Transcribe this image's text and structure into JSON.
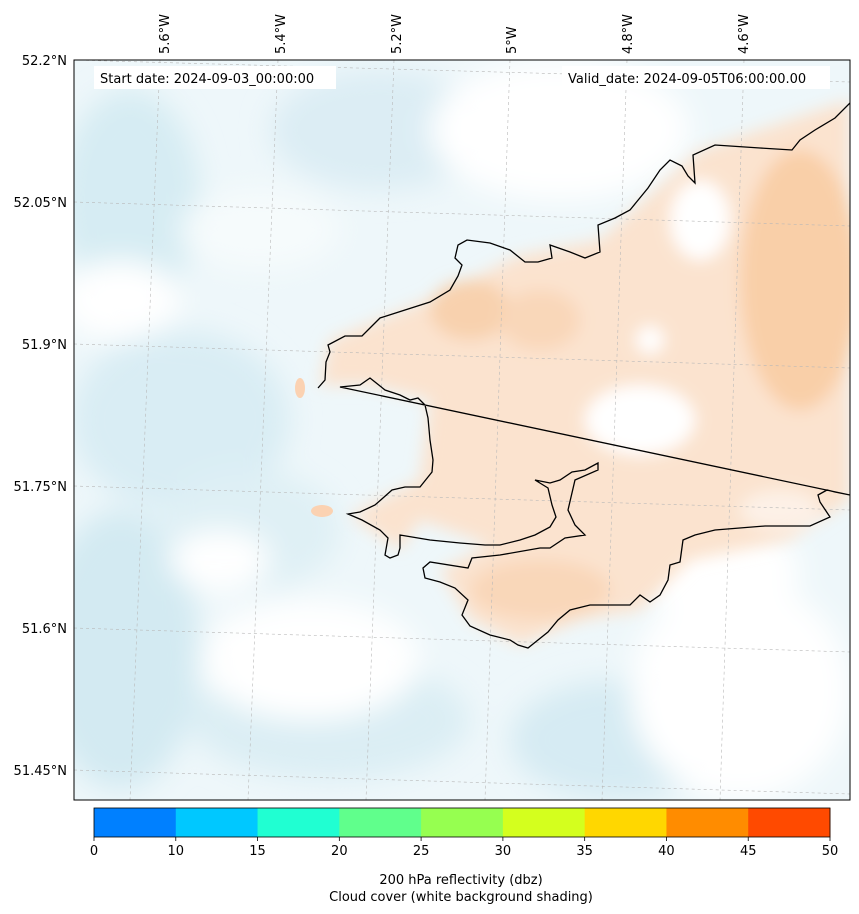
{
  "header": {
    "start_label": "Start date: 2024-09-03_00:00:00",
    "valid_label": "Valid_date: 2024-09-05T06:00:00.00"
  },
  "axes": {
    "lon_labels": [
      "5.6°W",
      "5.4°W",
      "5.2°W",
      "5°W",
      "4.8°W",
      "4.6°W"
    ],
    "lat_labels": [
      "52.2°N",
      "52.05°N",
      "51.9°N",
      "51.75°N",
      "51.6°N",
      "51.45°N"
    ],
    "gridlines": true
  },
  "colorbar": {
    "ticks": [
      "0",
      "10",
      "15",
      "20",
      "25",
      "30",
      "35",
      "40",
      "45",
      "50"
    ],
    "colors": [
      "#0080ff",
      "#00c8ff",
      "#20ffd2",
      "#60ff8c",
      "#96ff50",
      "#d4ff1e",
      "#ffd700",
      "#ff8c00",
      "#ff4a00"
    ],
    "title_line1": "200 hPa reflectivity (dbz)",
    "title_line2": "Cloud cover (white background shading)"
  },
  "colors": {
    "land_shading": "#fbe2cc",
    "cloud_shading": "#e4f2f7",
    "coast": "#000000"
  }
}
